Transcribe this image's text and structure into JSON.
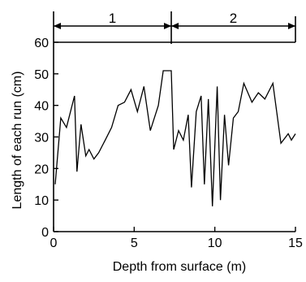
{
  "chart_data": {
    "type": "line",
    "xlabel": "Depth from surface (m)",
    "ylabel": "Length of each run (cm)",
    "xlim": [
      0,
      15
    ],
    "ylim": [
      0,
      60
    ],
    "x_ticks": [
      0,
      5,
      10,
      15
    ],
    "y_ticks": [
      0,
      10,
      20,
      30,
      40,
      50,
      60
    ],
    "grid": false,
    "zones": [
      {
        "label": "1",
        "from": 0,
        "to": 7.3
      },
      {
        "label": "2",
        "from": 7.3,
        "to": 15
      }
    ],
    "series": [
      {
        "x": [
          0.1,
          0.45,
          0.8,
          1.3,
          1.45,
          1.7,
          2.0,
          2.2,
          2.5,
          2.8,
          3.2,
          3.6,
          4.0,
          4.4,
          4.8,
          5.2,
          5.6,
          6.0,
          6.5,
          6.8,
          7.3,
          7.45,
          7.75,
          8.05,
          8.35,
          8.55,
          8.85,
          9.15,
          9.35,
          9.6,
          9.85,
          10.15,
          10.35,
          10.6,
          10.85,
          11.15,
          11.45,
          11.8,
          12.3,
          12.7,
          13.1,
          13.6,
          14.1,
          14.55,
          14.75,
          15.0
        ],
        "y": [
          15,
          36,
          33,
          43,
          19,
          34,
          24,
          26,
          23,
          25,
          29,
          33,
          40,
          41,
          45,
          38,
          46,
          32,
          40,
          51,
          51,
          26,
          32,
          29,
          37,
          14,
          38,
          43,
          15,
          42,
          8,
          46,
          10,
          37,
          21,
          36,
          38,
          47,
          41,
          44,
          42,
          47,
          28,
          31,
          29,
          31
        ]
      }
    ]
  }
}
